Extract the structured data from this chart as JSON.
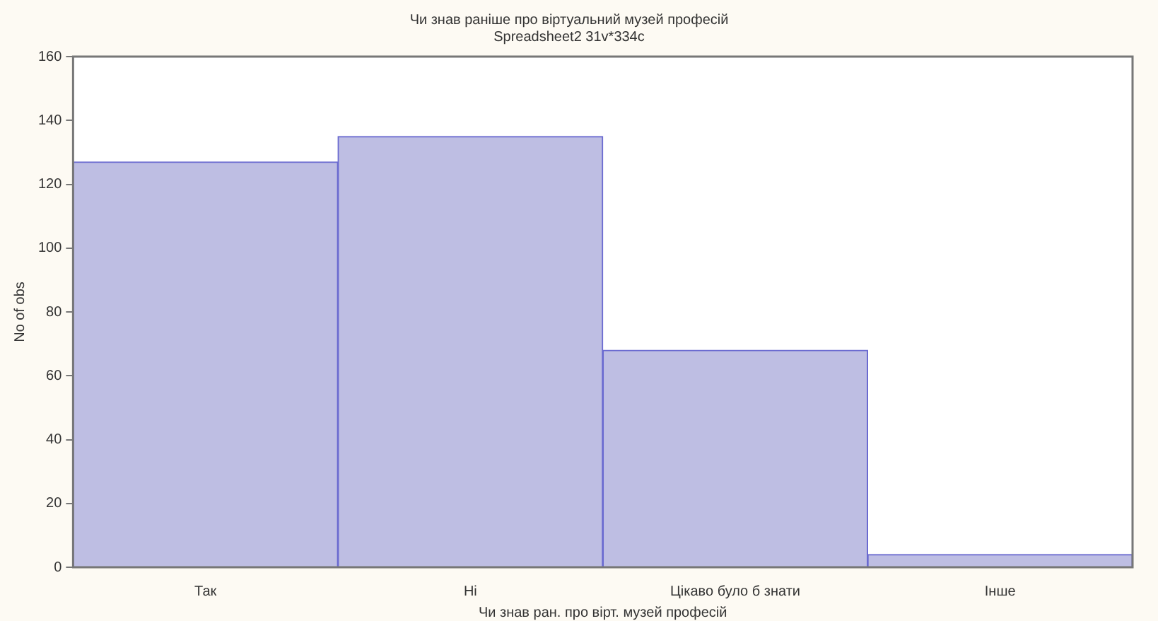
{
  "chart_data": {
    "type": "bar",
    "title": "Чи знав раніше про віртуальний музей професій",
    "subtitle": "Spreadsheet2 31v*334c",
    "xlabel": "Чи знав ран. про вірт. музей професій",
    "ylabel": "No of obs",
    "categories": [
      "Так",
      "Ні",
      "Цікаво було б знати",
      "Інше"
    ],
    "values": [
      127,
      135,
      68,
      4
    ],
    "color": "#bebee3",
    "ylim": [
      0,
      160
    ],
    "yticks": [
      0,
      20,
      40,
      60,
      80,
      100,
      120,
      140,
      160
    ],
    "grid": false,
    "legend": false
  }
}
